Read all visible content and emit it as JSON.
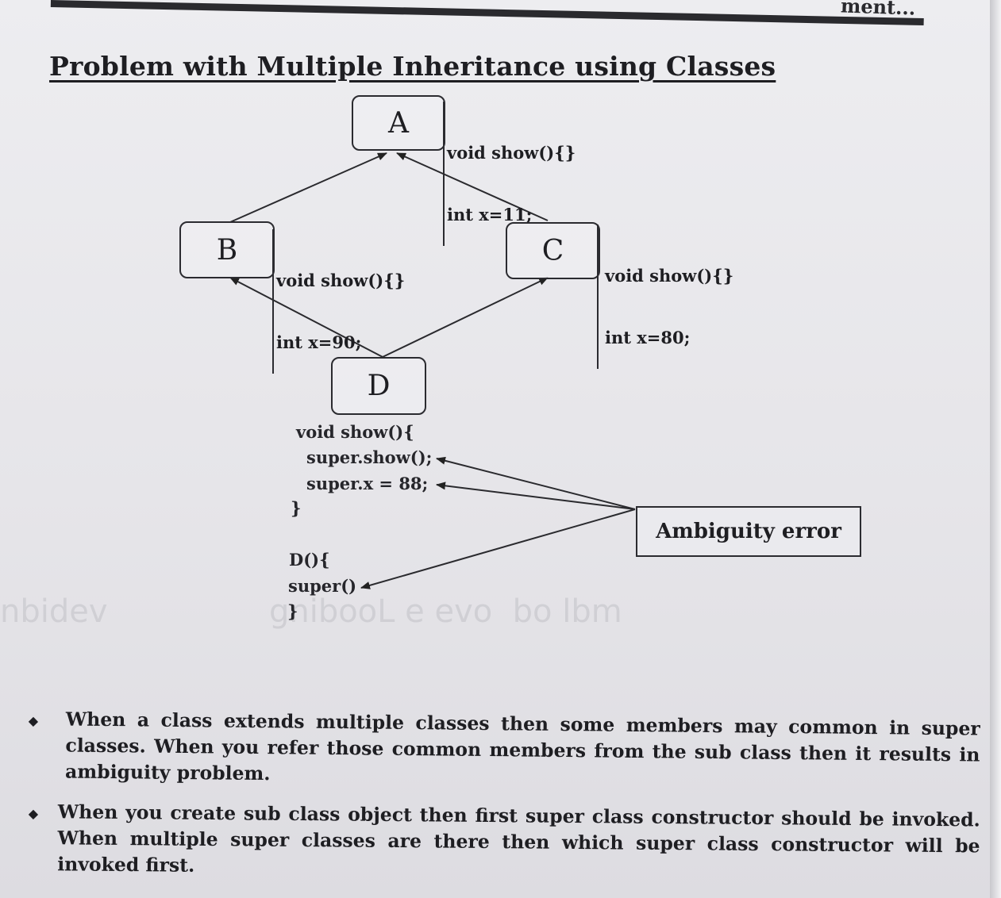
{
  "header_fragment": "ment...",
  "title": "Problem with Multiple Inheritance using Classes",
  "classes": {
    "a": {
      "name": "A",
      "members": [
        "void show(){}",
        "int x=11;"
      ]
    },
    "b": {
      "name": "B",
      "members": [
        "void show(){}",
        "int x=90;"
      ]
    },
    "c": {
      "name": "C",
      "members": [
        "void show(){}",
        "int x=80;"
      ]
    },
    "d": {
      "name": "D"
    }
  },
  "code": {
    "show_open": "void show(){",
    "super_show": "super.show();",
    "super_x": "super.x = 88;",
    "show_close": "}",
    "ctor_open": "D(){",
    "ctor_super": "super()",
    "ctor_close": "}"
  },
  "ambiguity_label": "Ambiguity error",
  "bullets": [
    "When a class extends multiple classes then some members may common in super classes. When you refer those common members from the sub class then it results in ambiguity problem.",
    "When you create sub class object then first super class constructor should be invoked. When multiple super classes are there then which super class constructor will be invoked first."
  ]
}
